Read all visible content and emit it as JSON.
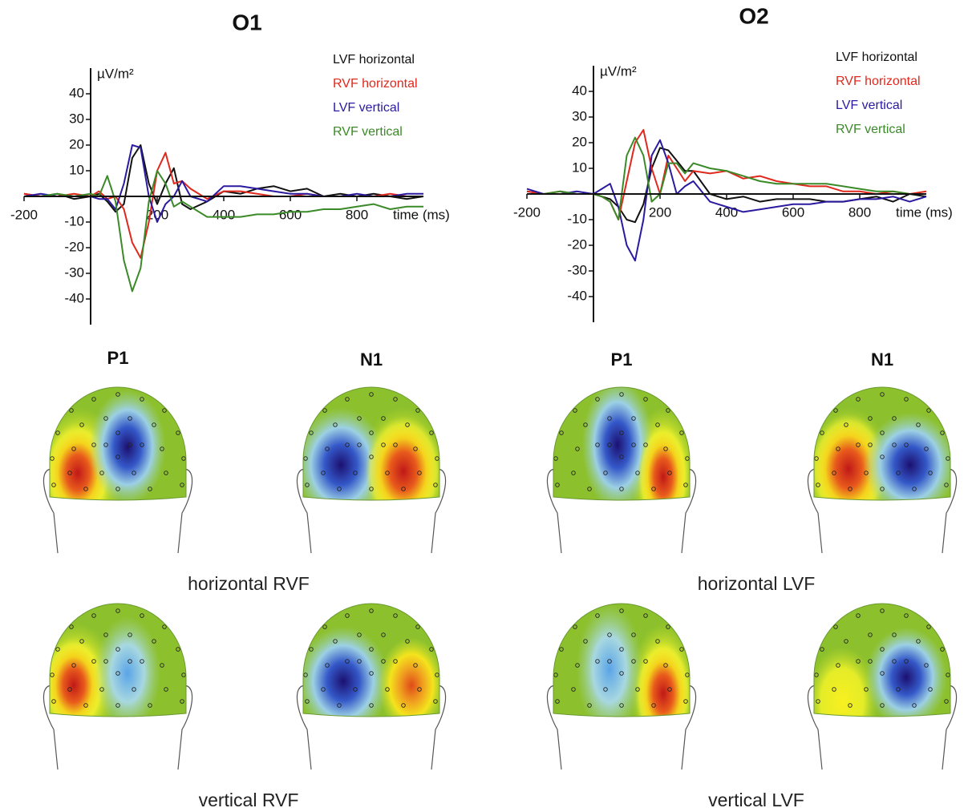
{
  "chart_data": [
    {
      "type": "line",
      "title": "O1",
      "ylabel": "µV/m²",
      "xlabel": "time (ms)",
      "legend": "upper right",
      "x": [
        -200,
        -150,
        -100,
        -50,
        0,
        25,
        50,
        75,
        100,
        125,
        150,
        175,
        200,
        225,
        250,
        275,
        300,
        350,
        400,
        450,
        500,
        550,
        600,
        650,
        700,
        750,
        800,
        850,
        900,
        950,
        1000
      ],
      "xlim": [
        -200,
        1000
      ],
      "ylim": [
        -50,
        50
      ],
      "xticks": [
        -200,
        200,
        400,
        600,
        800
      ],
      "yticks": [
        -40,
        -30,
        -20,
        -10,
        10,
        20,
        30,
        40
      ],
      "series": [
        {
          "name": "LVF horizontal",
          "color": "#111111",
          "values": [
            1,
            0,
            1,
            -1,
            0,
            1,
            -2,
            -6,
            -3,
            15,
            20,
            5,
            -3,
            5,
            11,
            -3,
            -5,
            -2,
            2,
            1,
            3,
            4,
            2,
            3,
            0,
            1,
            0,
            1,
            0,
            -1,
            0
          ]
        },
        {
          "name": "RVF horizontal",
          "color": "#e0281c",
          "values": [
            1,
            0,
            0,
            1,
            0,
            2,
            -1,
            0,
            -5,
            -18,
            -24,
            -10,
            10,
            17,
            5,
            6,
            3,
            -1,
            2,
            2,
            1,
            0,
            0,
            1,
            0,
            0,
            0,
            0,
            1,
            0,
            0
          ]
        },
        {
          "name": "LVF vertical",
          "color": "#2a1aa0",
          "values": [
            0,
            1,
            0,
            0,
            0,
            -1,
            -1,
            -5,
            5,
            20,
            19,
            0,
            -10,
            -3,
            0,
            6,
            0,
            -2,
            4,
            4,
            3,
            2,
            1,
            1,
            0,
            0,
            1,
            0,
            0,
            1,
            1
          ]
        },
        {
          "name": "RVF vertical",
          "color": "#3a8a28",
          "values": [
            0,
            0,
            1,
            0,
            1,
            0,
            8,
            -2,
            -25,
            -37,
            -28,
            -2,
            10,
            5,
            -4,
            -2,
            -4,
            -8,
            -8,
            -8,
            -7,
            -7,
            -6,
            -6,
            -5,
            -5,
            -4,
            -3,
            -5,
            -4,
            -4
          ]
        }
      ]
    },
    {
      "type": "line",
      "title": "O2",
      "ylabel": "µV/m²",
      "xlabel": "time (ms)",
      "legend": "upper right",
      "x": [
        -200,
        -150,
        -100,
        -50,
        0,
        25,
        50,
        75,
        100,
        125,
        150,
        175,
        200,
        225,
        250,
        275,
        300,
        350,
        400,
        450,
        500,
        550,
        600,
        650,
        700,
        750,
        800,
        850,
        900,
        950,
        1000
      ],
      "xlim": [
        -200,
        1000
      ],
      "ylim": [
        -50,
        50
      ],
      "xticks": [
        -200,
        200,
        400,
        600,
        800
      ],
      "yticks": [
        -40,
        -30,
        -20,
        -10,
        10,
        20,
        30,
        40
      ],
      "series": [
        {
          "name": "LVF horizontal",
          "color": "#111111",
          "values": [
            1,
            0,
            0,
            0,
            0,
            -1,
            -2,
            -5,
            -10,
            -11,
            -4,
            10,
            18,
            17,
            13,
            9,
            9,
            0,
            -2,
            -1,
            -3,
            -2,
            -2,
            -2,
            -3,
            -3,
            -2,
            -1,
            -3,
            0,
            -1
          ]
        },
        {
          "name": "RVF horizontal",
          "color": "#e0281c",
          "values": [
            1,
            0,
            1,
            0,
            0,
            -1,
            -3,
            -10,
            5,
            20,
            25,
            10,
            0,
            15,
            10,
            5,
            9,
            8,
            9,
            6,
            7,
            5,
            4,
            3,
            3,
            1,
            1,
            0,
            1,
            0,
            1
          ]
        },
        {
          "name": "LVF vertical",
          "color": "#2a1aa0",
          "values": [
            2,
            0,
            0,
            1,
            0,
            2,
            4,
            -5,
            -20,
            -26,
            -10,
            15,
            21,
            12,
            0,
            3,
            5,
            -3,
            -5,
            -7,
            -6,
            -5,
            -4,
            -4,
            -3,
            -3,
            -2,
            -2,
            -1,
            -3,
            -1
          ]
        },
        {
          "name": "RVF vertical",
          "color": "#3a8a28",
          "values": [
            0,
            0,
            1,
            0,
            0,
            -1,
            -3,
            -10,
            15,
            22,
            15,
            -3,
            0,
            12,
            12,
            8,
            12,
            10,
            9,
            7,
            5,
            4,
            4,
            4,
            4,
            3,
            2,
            1,
            1,
            0,
            0
          ]
        }
      ]
    }
  ],
  "topomaps": {
    "components": [
      "P1",
      "N1",
      "P1",
      "N1"
    ],
    "conditions": [
      "horizontal RVF",
      "horizontal LVF",
      "vertical RVF",
      "vertical LVF"
    ]
  }
}
